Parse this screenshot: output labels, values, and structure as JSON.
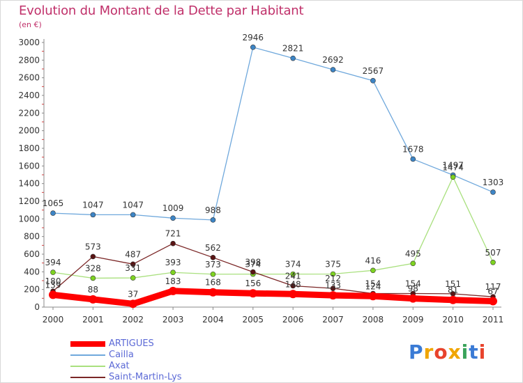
{
  "title": "Evolution du Montant de la Dette par Habitant",
  "subtitle": "(en €)",
  "logo": "Proxiti",
  "chart_data": {
    "type": "line",
    "title": "Evolution du Montant de la Dette par Habitant",
    "subtitle": "(en €)",
    "x": [
      "2000",
      "2001",
      "2002",
      "2003",
      "2004",
      "2005",
      "2006",
      "2007",
      "2008",
      "2009",
      "2010",
      "2011"
    ],
    "ylim": [
      0,
      3000
    ],
    "yticks": [
      0,
      200,
      400,
      600,
      800,
      1000,
      1200,
      1400,
      1600,
      1800,
      2000,
      2200,
      2400,
      2600,
      2800,
      3000
    ],
    "grid": false,
    "legend_position": "bottom-left",
    "series": [
      {
        "name": "ARTIGUES",
        "color": "#ff0000",
        "values": [
          139,
          88,
          37,
          183,
          168,
          156,
          148,
          133,
          124,
          98,
          81,
          67
        ],
        "labels": [
          "139",
          "88",
          "37",
          "183",
          "168",
          "156",
          "148",
          "133",
          "124",
          "98",
          "81",
          "67"
        ]
      },
      {
        "name": "Cailla",
        "color": "#6fa8dc",
        "marker": "#3d85c6",
        "values": [
          1065,
          1047,
          1047,
          1009,
          988,
          2946,
          2821,
          2692,
          2567,
          1678,
          1497,
          1303
        ],
        "labels": [
          "1065",
          "1047",
          "1047",
          "1009",
          "988",
          "2946",
          "2821",
          "2692",
          "2567",
          "1678",
          "1497",
          "1303"
        ]
      },
      {
        "name": "Axat",
        "color": "#a9e07e",
        "marker": "#7ed321",
        "values": [
          394,
          328,
          331,
          393,
          373,
          374,
          374,
          375,
          416,
          495,
          1474,
          507
        ],
        "labels": [
          "394",
          "328",
          "331",
          "393",
          "373",
          "374",
          "374",
          "375",
          "416",
          "495",
          "1474",
          "507"
        ]
      },
      {
        "name": "Saint-Martin-Lys",
        "color": "#7b2727",
        "marker": "#5a1414",
        "values": [
          180,
          573,
          487,
          721,
          562,
          398,
          241,
          212,
          154,
          154,
          151,
          117
        ],
        "labels": [
          "180",
          "573",
          "487",
          "721",
          "562",
          "398",
          "241",
          "212",
          "154",
          "154",
          "151",
          "117"
        ]
      }
    ]
  }
}
